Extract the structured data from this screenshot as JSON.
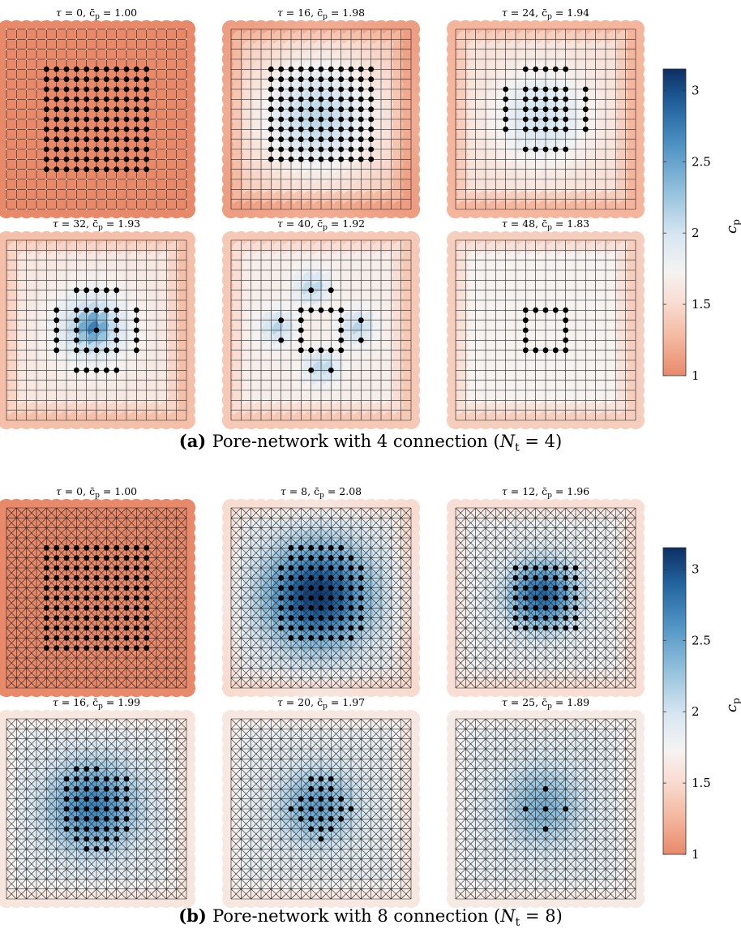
{
  "figure_a": {
    "panels": [
      {
        "tau": "0",
        "cbar": "1.00"
      },
      {
        "tau": "16",
        "cbar": "1.98"
      },
      {
        "tau": "24",
        "cbar": "1.94"
      },
      {
        "tau": "32",
        "cbar": "1.93"
      },
      {
        "tau": "40",
        "cbar": "1.92"
      },
      {
        "tau": "48",
        "cbar": "1.83"
      }
    ],
    "caption": {
      "tag": "(a)",
      "text": "Pore-network with 4 connection (",
      "var": "N",
      "sub": "t",
      "rest": " = 4)"
    },
    "connectivity": 4
  },
  "figure_b": {
    "panels": [
      {
        "tau": "0",
        "cbar": "1.00"
      },
      {
        "tau": "8",
        "cbar": "2.08"
      },
      {
        "tau": "12",
        "cbar": "1.96"
      },
      {
        "tau": "16",
        "cbar": "1.99"
      },
      {
        "tau": "20",
        "cbar": "1.97"
      },
      {
        "tau": "25",
        "cbar": "1.89"
      }
    ],
    "caption": {
      "tag": "(b)",
      "text": "Pore-network with 8 connection (",
      "var": "N",
      "sub": "t",
      "rest": " = 8)"
    },
    "connectivity": 8
  },
  "colorbar": {
    "label": "c",
    "label_sub": "p",
    "min": 1,
    "max": 3.15,
    "ticks": [
      "1",
      "1.5",
      "2",
      "2.5",
      "3"
    ],
    "tick_values": [
      1,
      1.5,
      2,
      2.5,
      3
    ],
    "colors": {
      "low": "#e8896a",
      "mid": "#f5f3f2",
      "high": "#0c2f63",
      "bg_orange": "#e37d5c"
    }
  },
  "panel_title_template": {
    "tau_symbol": "τ",
    "cbar_symbol": "c̄",
    "cbar_sub": "p",
    "eq": " = "
  }
}
